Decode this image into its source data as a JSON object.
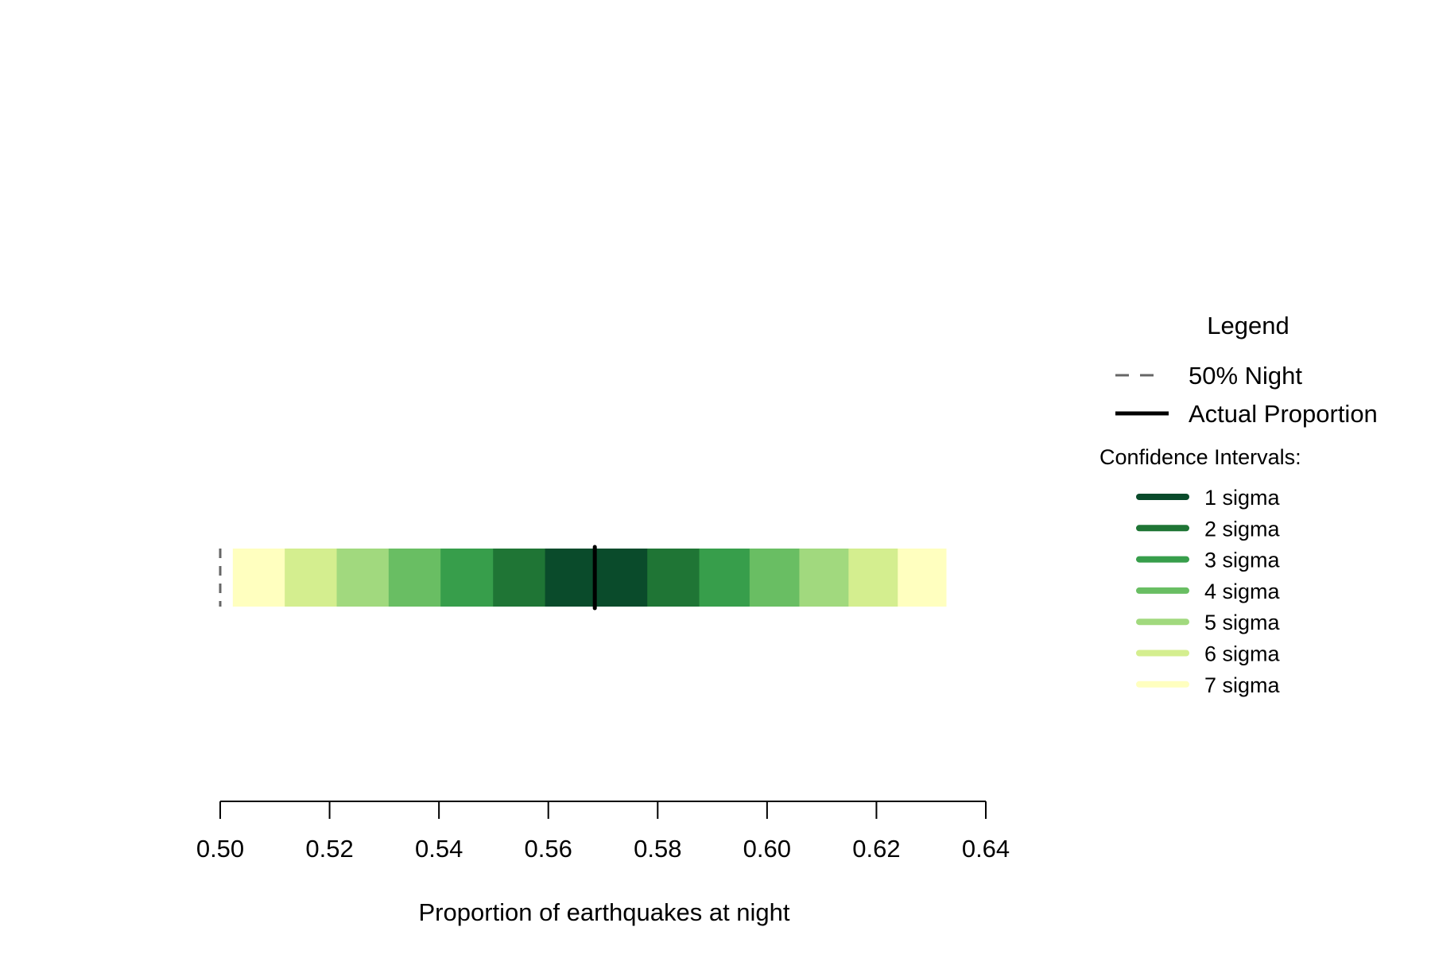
{
  "chart_data": {
    "type": "bar",
    "orientation": "horizontal",
    "xlabel": "Proportion of earthquakes at night",
    "xlim": [
      0.5,
      0.64
    ],
    "ticks": [
      0.5,
      0.52,
      0.54,
      0.56,
      0.58,
      0.6,
      0.62,
      0.64
    ],
    "tick_labels": [
      "0.50",
      "0.52",
      "0.54",
      "0.56",
      "0.58",
      "0.60",
      "0.62",
      "0.64"
    ],
    "reference_line": {
      "label": "50% Night",
      "value": 0.5,
      "style": "dashed",
      "color": "#666666"
    },
    "actual_proportion": {
      "label": "Actual Proportion",
      "value": 0.5685,
      "color": "#000000"
    },
    "confidence_intervals_title": "Confidence Intervals:",
    "confidence_intervals": [
      {
        "label": "7 sigma",
        "low": 0.5023,
        "high": 0.6328,
        "color": "#FFFFBF"
      },
      {
        "label": "6 sigma",
        "low": 0.5118,
        "high": 0.6239,
        "color": "#D4EE8F"
      },
      {
        "label": "5 sigma",
        "low": 0.5213,
        "high": 0.6149,
        "color": "#A1D97E"
      },
      {
        "label": "4 sigma",
        "low": 0.5308,
        "high": 0.6059,
        "color": "#69BE63"
      },
      {
        "label": "3 sigma",
        "low": 0.5403,
        "high": 0.5968,
        "color": "#379E4B"
      },
      {
        "label": "2 sigma",
        "low": 0.5499,
        "high": 0.5876,
        "color": "#1F7535"
      },
      {
        "label": "1 sigma",
        "low": 0.5594,
        "high": 0.5781,
        "color": "#0A4B2B"
      }
    ],
    "legend": {
      "title": "Legend",
      "position": "right",
      "ci_order": [
        "1 sigma",
        "2 sigma",
        "3 sigma",
        "4 sigma",
        "5 sigma",
        "6 sigma",
        "7 sigma"
      ]
    }
  }
}
